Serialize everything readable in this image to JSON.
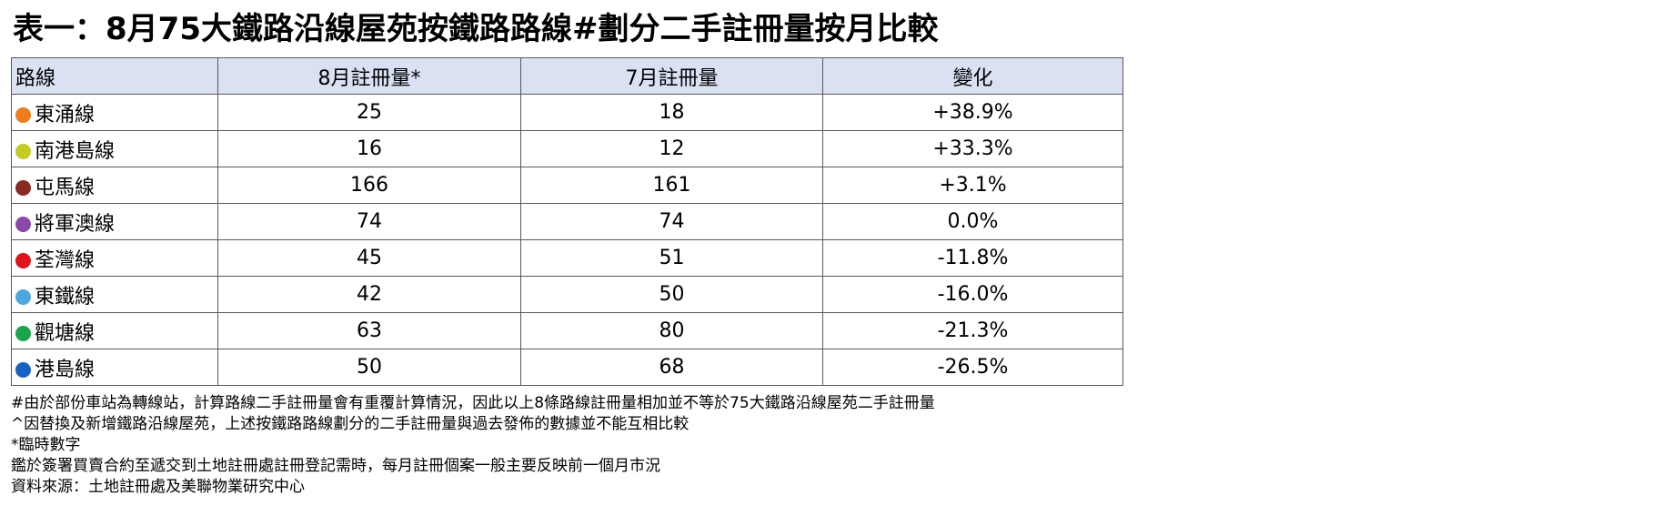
{
  "title": "表一：8月75大鐵路沿線屋苑按鐵路路線#劃分二手註冊量按月比較",
  "table": {
    "headers": [
      "路線",
      "8月註冊量*",
      "7月註冊量",
      "變化"
    ],
    "rows": [
      {
        "line": "東涌線",
        "color": "#f07d1a",
        "aug": "25",
        "jul": "18",
        "change": "+38.9%"
      },
      {
        "line": "南港島線",
        "color": "#c4cc22",
        "aug": "16",
        "jul": "12",
        "change": "+33.3%"
      },
      {
        "line": "屯馬線",
        "color": "#8b2a20",
        "aug": "166",
        "jul": "161",
        "change": "+3.1%"
      },
      {
        "line": "將軍澳線",
        "color": "#8a49a8",
        "aug": "74",
        "jul": "74",
        "change": "0.0%"
      },
      {
        "line": "荃灣線",
        "color": "#e0121c",
        "aug": "45",
        "jul": "51",
        "change": "-11.8%"
      },
      {
        "line": "東鐵線",
        "color": "#4ba9e0",
        "aug": "42",
        "jul": "50",
        "change": "-16.0%"
      },
      {
        "line": "觀塘線",
        "color": "#1aa54a",
        "aug": "63",
        "jul": "80",
        "change": "-21.3%"
      },
      {
        "line": "港島線",
        "color": "#1763c4",
        "aug": "50",
        "jul": "68",
        "change": "-26.5%"
      }
    ]
  },
  "notes": [
    "#由於部份車站為轉線站，計算路線二手註冊量會有重覆計算情況，因此以上8條路線註冊量相加並不等於75大鐵路沿線屋苑二手註冊量",
    "^因替換及新增鐵路沿線屋苑，上述按鐵路路線劃分的二手註冊量與過去發佈的數據並不能互相比較",
    "*臨時數字",
    "鑑於簽署買賣合約至遞交到土地註冊處註冊登記需時，每月註冊個案一般主要反映前一個月市況",
    "資料來源：土地註冊處及美聯物業研究中心"
  ]
}
